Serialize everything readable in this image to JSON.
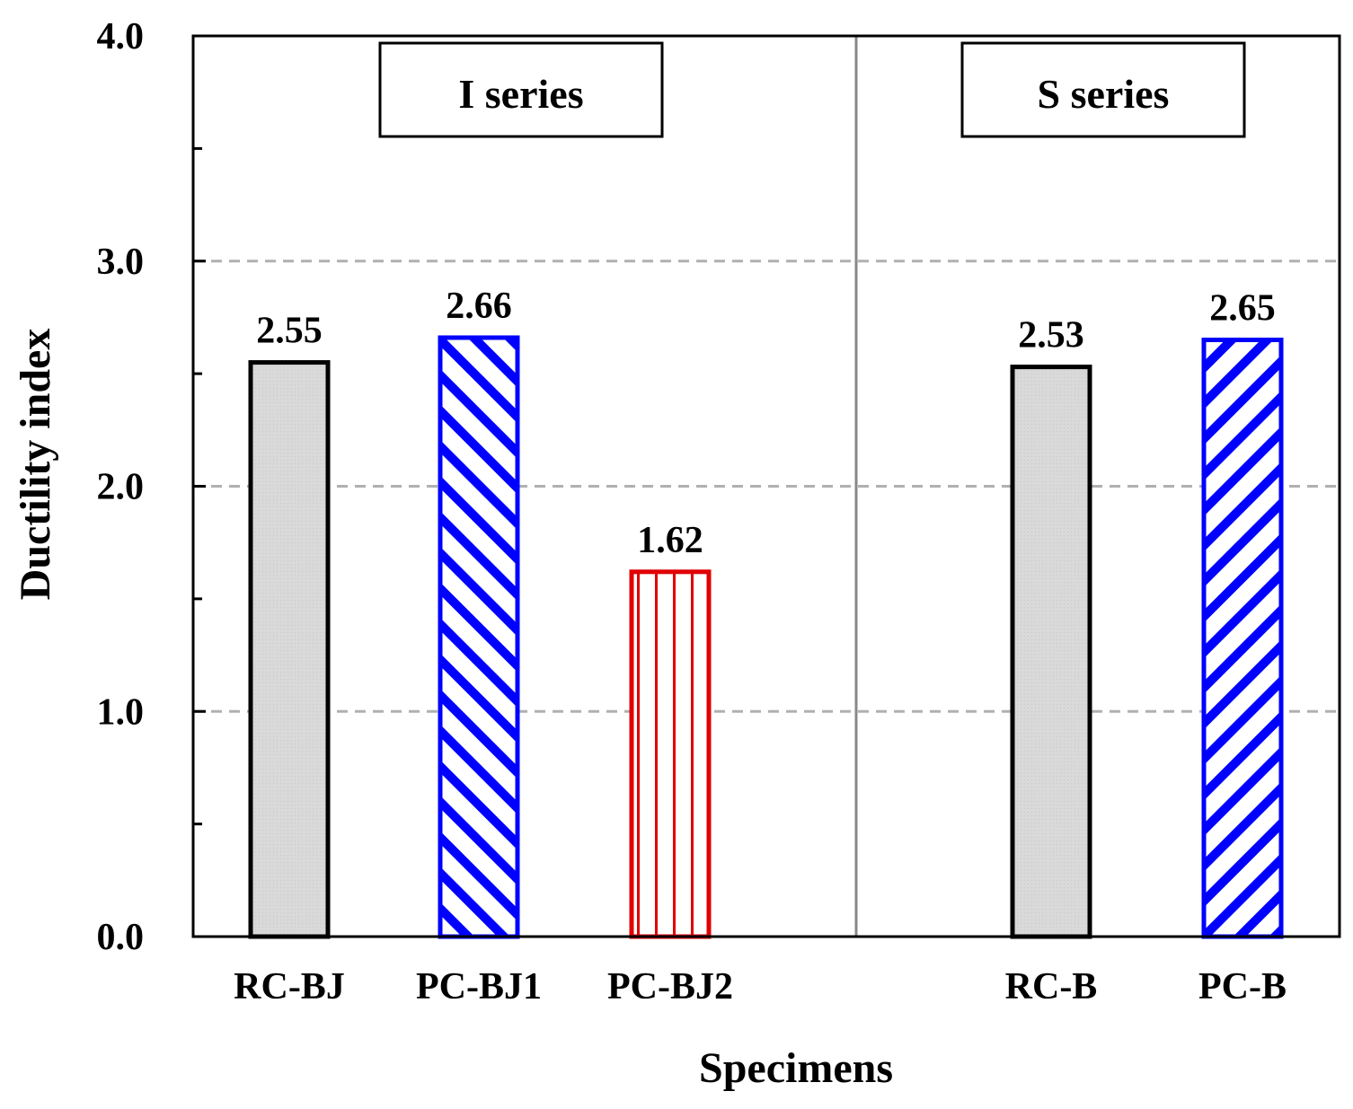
{
  "chart_data": {
    "type": "bar",
    "title": "",
    "xlabel": "Specimens",
    "ylabel": "Ductility index",
    "ylim": [
      0,
      4
    ],
    "yticks": [
      "0.0",
      "1.0",
      "2.0",
      "3.0",
      "4.0"
    ],
    "grid": "horizontal dashed at major ticks",
    "groups": [
      {
        "name": "I series",
        "categories": [
          "RC-BJ",
          "PC-BJ1",
          "PC-BJ2"
        ]
      },
      {
        "name": "S series",
        "categories": [
          "RC-B",
          "PC-B"
        ]
      }
    ],
    "categories": [
      "RC-BJ",
      "PC-BJ1",
      "PC-BJ2",
      "RC-B",
      "PC-B"
    ],
    "values": [
      2.55,
      2.66,
      1.62,
      2.53,
      2.65
    ],
    "value_labels": [
      "2.55",
      "2.66",
      "1.62",
      "2.53",
      "2.65"
    ],
    "bar_styles": [
      {
        "pattern": "gray-fill",
        "stroke": "#000000",
        "fill": "#d9d9d9"
      },
      {
        "pattern": "hatch-down",
        "stroke": "#0000ff",
        "fill": "#ffffff"
      },
      {
        "pattern": "vertical-lines",
        "stroke": "#e00000",
        "fill": "#ffffff"
      },
      {
        "pattern": "gray-fill",
        "stroke": "#000000",
        "fill": "#d9d9d9"
      },
      {
        "pattern": "hatch-up",
        "stroke": "#0000ff",
        "fill": "#ffffff"
      }
    ]
  }
}
